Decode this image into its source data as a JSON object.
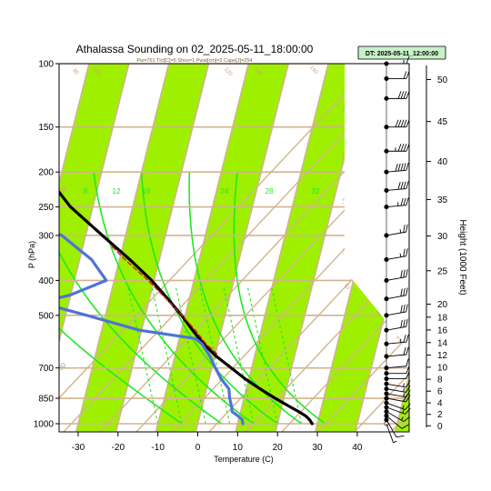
{
  "chart_data": {
    "type": "line",
    "title": "Athalassa Sounding on 02_2025-05-11_18:00:00",
    "subtitle": "Pw=761 Tlcl[C]=5 Shox=1 Pwat[cm]=2 Cape[J]=254",
    "badge": "DT: 2025-05-11_12:00:00",
    "xlabel": "Temperature (C)",
    "ylabel": "P (hPa)",
    "right_label": "Height (1000 Feet)",
    "xlim": [
      -33,
      51
    ],
    "ylim": [
      1020,
      100
    ],
    "x_ticks": [
      -30,
      -20,
      -10,
      0,
      10,
      20,
      30,
      40
    ],
    "x_tick_labels": [
      "-30",
      "-20",
      "-10",
      "0",
      "10",
      "20",
      "30",
      "40"
    ],
    "p_ticks": [
      100,
      150,
      200,
      250,
      300,
      400,
      500,
      700,
      850,
      1000
    ],
    "p_tick_labels": [
      "100",
      "150",
      "200",
      "250",
      "300",
      "400",
      "500",
      "700",
      "850",
      "1000"
    ],
    "height_ticks": [
      0,
      2,
      4,
      6,
      8,
      10,
      12,
      14,
      16,
      18,
      20,
      25,
      30,
      35,
      40,
      45,
      50
    ],
    "height_tick_labels": [
      "0",
      "2",
      "4",
      "6",
      "8",
      "10",
      "12",
      "14",
      "16",
      "18",
      "20",
      "25",
      "30",
      "35",
      "40",
      "45",
      "50"
    ],
    "mixing_ratio_labels": [
      "8",
      "12",
      "16",
      "24",
      "28",
      "32"
    ],
    "isotherm_labels": [
      "-50",
      "-40",
      "-30",
      "-20",
      "-10",
      "0",
      "10",
      "20",
      "30"
    ],
    "dry_adiabat_labels": [
      "80",
      "100",
      "120",
      "140",
      "160"
    ],
    "colors": {
      "temperature": "#000000",
      "dewpoint": "#4e73d8",
      "parcel": "#dd2020",
      "green_band": "#9ef000",
      "isotherm": "#d2b48c",
      "moist_adiabat": "#22e822",
      "mixing_ratio": "#22e822",
      "badge_bg": "#c8f0c8"
    },
    "series": [
      {
        "points": [
          [
            1000,
            28.7
          ],
          [
            975,
            27.8
          ],
          [
            950,
            26.5
          ],
          [
            925,
            24.5
          ],
          [
            900,
            22.3
          ],
          [
            850,
            17.8
          ],
          [
            800,
            13.4
          ],
          [
            750,
            9.0
          ],
          [
            700,
            4.9
          ],
          [
            650,
            0.4
          ],
          [
            600,
            -3.6
          ],
          [
            550,
            -7.2
          ],
          [
            500,
            -10.9
          ],
          [
            450,
            -15.4
          ],
          [
            400,
            -20.6
          ],
          [
            350,
            -27.4
          ],
          [
            300,
            -35.8
          ],
          [
            250,
            -45.6
          ],
          [
            200,
            -54.6
          ],
          [
            175,
            -58.0
          ],
          [
            150,
            -61.0
          ],
          [
            125,
            -63.9
          ],
          [
            100,
            -68.2
          ]
        ]
      },
      {
        "points": [
          [
            1000,
            11.3
          ],
          [
            975,
            10.9
          ],
          [
            950,
            9.5
          ],
          [
            925,
            7.8
          ],
          [
            900,
            7.5
          ],
          [
            850,
            6.4
          ],
          [
            800,
            5.6
          ],
          [
            750,
            3.0
          ],
          [
            700,
            0.9
          ],
          [
            650,
            -1.2
          ],
          [
            600,
            -4.0
          ],
          [
            580,
            -6.0
          ],
          [
            550,
            -20.5
          ],
          [
            500,
            -34.7
          ],
          [
            460,
            -47.5
          ],
          [
            440,
            -40.3
          ],
          [
            400,
            -32.0
          ],
          [
            350,
            -37.0
          ],
          [
            300,
            -46.0
          ],
          [
            250,
            -63.0
          ],
          [
            225,
            -67.3
          ],
          [
            200,
            -67.5
          ],
          [
            175,
            -70.5
          ],
          [
            150,
            -75.5
          ],
          [
            125,
            -78.5
          ],
          [
            100,
            -76.4
          ]
        ]
      },
      {
        "points": [
          [
            640,
            0.4
          ],
          [
            600,
            -3.0
          ],
          [
            550,
            -6.5
          ],
          [
            500,
            -10.8
          ],
          [
            450,
            -15.8
          ],
          [
            400,
            -21.5
          ],
          [
            350,
            -28.6
          ],
          [
            320,
            -33.0
          ]
        ]
      }
    ],
    "wind_barbs": [
      {
        "p": 1000,
        "dir": 340,
        "kt": 5
      },
      {
        "p": 975,
        "dir": 330,
        "kt": 10
      },
      {
        "p": 950,
        "dir": 310,
        "kt": 10
      },
      {
        "p": 925,
        "dir": 300,
        "kt": 15
      },
      {
        "p": 900,
        "dir": 290,
        "kt": 15
      },
      {
        "p": 875,
        "dir": 290,
        "kt": 15
      },
      {
        "p": 850,
        "dir": 280,
        "kt": 20
      },
      {
        "p": 825,
        "dir": 280,
        "kt": 15
      },
      {
        "p": 800,
        "dir": 280,
        "kt": 15
      },
      {
        "p": 775,
        "dir": 280,
        "kt": 15
      },
      {
        "p": 750,
        "dir": 270,
        "kt": 10
      },
      {
        "p": 725,
        "dir": 270,
        "kt": 10
      },
      {
        "p": 700,
        "dir": 265,
        "kt": 10
      },
      {
        "p": 650,
        "dir": 265,
        "kt": 20
      },
      {
        "p": 600,
        "dir": 265,
        "kt": 25
      },
      {
        "p": 550,
        "dir": 260,
        "kt": 30
      },
      {
        "p": 500,
        "dir": 260,
        "kt": 30
      },
      {
        "p": 450,
        "dir": 260,
        "kt": 30
      },
      {
        "p": 400,
        "dir": 260,
        "kt": 30
      },
      {
        "p": 350,
        "dir": 260,
        "kt": 25
      },
      {
        "p": 300,
        "dir": 260,
        "kt": 25
      },
      {
        "p": 250,
        "dir": 265,
        "kt": 35
      },
      {
        "p": 225,
        "dir": 265,
        "kt": 40
      },
      {
        "p": 200,
        "dir": 265,
        "kt": 50
      },
      {
        "p": 175,
        "dir": 270,
        "kt": 45
      },
      {
        "p": 150,
        "dir": 270,
        "kt": 50
      },
      {
        "p": 125,
        "dir": 270,
        "kt": 40
      },
      {
        "p": 110,
        "dir": 270,
        "kt": 20
      },
      {
        "p": 100,
        "dir": 270,
        "kt": 15
      }
    ]
  }
}
